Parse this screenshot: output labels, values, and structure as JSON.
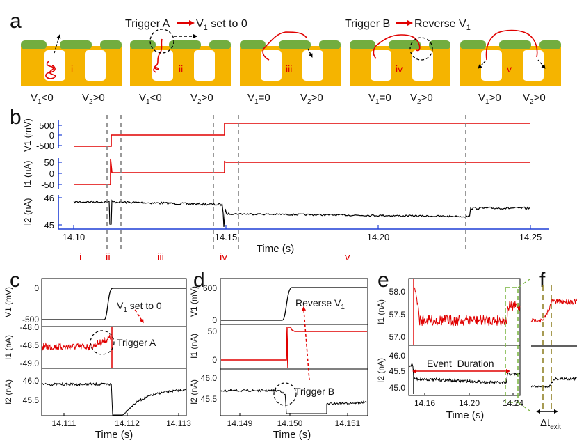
{
  "figure": {
    "panel_labels": {
      "a": "a",
      "b": "b",
      "c": "c",
      "d": "d",
      "e": "e",
      "f": "f"
    },
    "colors": {
      "membrane": "#f5b400",
      "electrode": "#72ad3f",
      "trace_red": "#e00000",
      "trace_black": "#000000",
      "axis_blue": "#1f3fd6",
      "box_green": "#77b33b",
      "dash_grey": "#808080"
    }
  },
  "panel_a": {
    "trigger_a": {
      "prefix": "Trigger A",
      "main": "V",
      "sub": "1",
      "suffix": " set to 0"
    },
    "trigger_b": {
      "prefix": "Trigger B",
      "main": "Reverse V",
      "sub": "1"
    },
    "stages": [
      {
        "roman": "i",
        "v1": "V",
        "v1_sub": "1",
        "v1_rel": "<0",
        "v2": "V",
        "v2_sub": "2",
        "v2_rel": ">0"
      },
      {
        "roman": "ii",
        "v1": "V",
        "v1_sub": "1",
        "v1_rel": "<0",
        "v2": "V",
        "v2_sub": "2",
        "v2_rel": ">0"
      },
      {
        "roman": "iii",
        "v1": "V",
        "v1_sub": "1",
        "v1_rel": "=0",
        "v2": "V",
        "v2_sub": "2",
        "v2_rel": ">0"
      },
      {
        "roman": "iv",
        "v1": "V",
        "v1_sub": "1",
        "v1_rel": "=0",
        "v2": "V",
        "v2_sub": "2",
        "v2_rel": ">0"
      },
      {
        "roman": "v",
        "v1": "V",
        "v1_sub": "1",
        "v1_rel": ">0",
        "v2": "V",
        "v2_sub": "2",
        "v2_rel": ">0"
      }
    ]
  },
  "panel_b": {
    "xlabel": "Time (s)",
    "xticks": [
      "14.10",
      "14.15",
      "14.20",
      "14.25"
    ],
    "v1": {
      "ylabel": "V1 (mV)",
      "yticks": [
        "500",
        "0",
        "-500"
      ]
    },
    "i1": {
      "ylabel": "I1  (nA)",
      "yticks": [
        "50",
        "0",
        "-50"
      ]
    },
    "i2": {
      "ylabel": "I2 (nA)",
      "yticks": [
        "46",
        "45"
      ]
    },
    "stage_labels": [
      "i",
      "ii",
      "iii",
      "iv",
      "v"
    ]
  },
  "panel_c": {
    "xlabel": "Time (s)",
    "xticks": [
      "14.111",
      "14.112",
      "14.113"
    ],
    "v1": {
      "ylabel": "V1 (mV)",
      "yticks": [
        "0",
        "-500"
      ]
    },
    "i1": {
      "ylabel": "I1 (nA)",
      "yticks": [
        "-48.0",
        "-48.5",
        "-49.0"
      ]
    },
    "i2": {
      "ylabel": "I2 (nA)",
      "yticks": [
        "46.0",
        "45.5"
      ]
    },
    "annot_v": {
      "main": "V",
      "sub": "1",
      "suffix": " set to 0"
    },
    "annot_trigger": "Trigger A"
  },
  "panel_d": {
    "xlabel": "Time (s)",
    "xticks": [
      "14.149",
      "14.150",
      "14.151"
    ],
    "v1": {
      "ylabel": "V1 (mV)",
      "yticks": [
        "600",
        "0"
      ]
    },
    "i1": {
      "ylabel": "I1 (nA)",
      "yticks": [
        "50",
        "0"
      ]
    },
    "i2": {
      "ylabel": "I2 (nA)",
      "yticks": [
        "46.0",
        "45.5"
      ]
    },
    "annot_v": {
      "main": "Reverse V",
      "sub": "1"
    },
    "annot_trigger": "Trigger B"
  },
  "panel_e": {
    "xlabel": "Time (s)",
    "xticks": [
      "14.16",
      "14.20",
      "14.24"
    ],
    "i1": {
      "ylabel": "I1 (nA)",
      "yticks": [
        "58.0",
        "57.5",
        "57.0"
      ]
    },
    "i2": {
      "ylabel": "I2 (nA)",
      "yticks": [
        "46.0",
        "45.5",
        "45.0"
      ]
    },
    "annot": "Event  Duration"
  },
  "panel_f": {
    "delta": {
      "main": "Δt",
      "sub": "exit"
    }
  }
}
